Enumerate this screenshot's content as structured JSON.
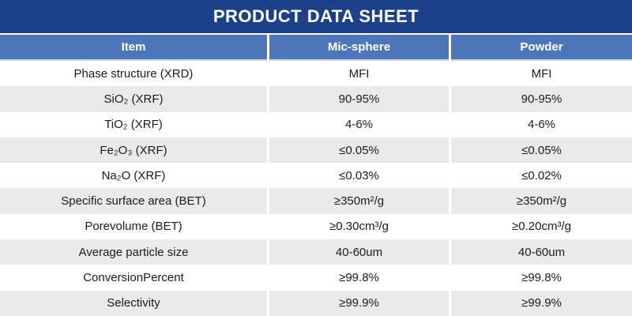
{
  "title": "PRODUCT DATA SHEET",
  "table": {
    "columns": [
      "Item",
      "Mic-sphere",
      "Powder"
    ],
    "rows": [
      {
        "item": "Phase structure (XRD)",
        "mic_sphere": "MFI",
        "powder": "MFI"
      },
      {
        "item": "SiO₂ (XRF)",
        "mic_sphere": "90-95%",
        "powder": "90-95%"
      },
      {
        "item": "TiO₂ (XRF)",
        "mic_sphere": "4-6%",
        "powder": "4-6%"
      },
      {
        "item": "Fe₂O₃ (XRF)",
        "mic_sphere": "≤0.05%",
        "powder": "≤0.05%"
      },
      {
        "item": "Na₂O (XRF)",
        "mic_sphere": "≤0.03%",
        "powder": "≤0.02%"
      },
      {
        "item": "Specific surface area (BET)",
        "mic_sphere": "≥350m²/g",
        "powder": "≥350m²/g"
      },
      {
        "item": "Porevolume (BET)",
        "mic_sphere": "≥0.30cm³/g",
        "powder": "≥0.20cm³/g"
      },
      {
        "item": "Average particle size",
        "mic_sphere": "40-60um",
        "powder": "40-60um"
      },
      {
        "item": "ConversionPercent",
        "mic_sphere": "≥99.8%",
        "powder": "≥99.8%"
      },
      {
        "item": "Selectivity",
        "mic_sphere": "≥99.9%",
        "powder": "≥99.9%"
      }
    ]
  },
  "colors": {
    "banner_bg": "#1D4189",
    "header_bg": "#4E77BB",
    "row_alt_bg": "#EAEAEA",
    "header_divider": "#C9D6EC"
  }
}
